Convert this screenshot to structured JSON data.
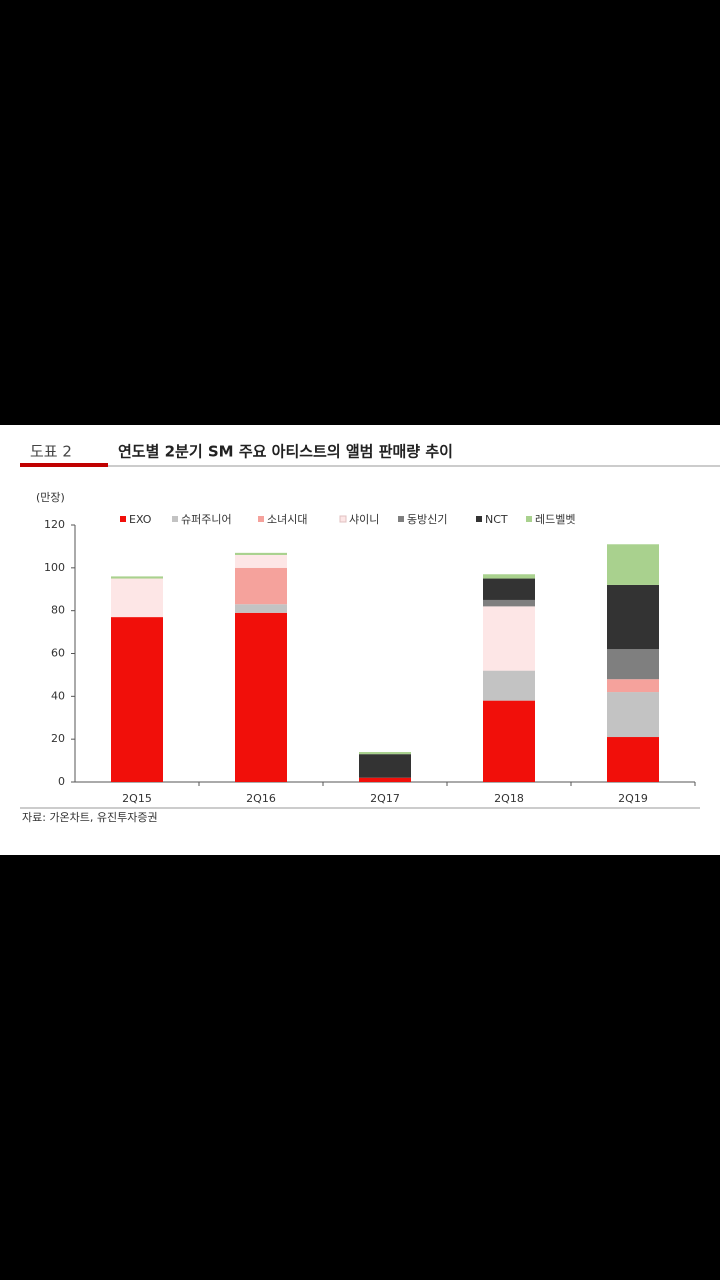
{
  "chart_data": {
    "type": "stacked_bar",
    "figure_label": "도표 2",
    "title": "연도별 2분기 SM 주요 아티스트의 앨범 판매량 추이",
    "y_unit": "(만장)",
    "source": "자료: 가온차트, 유진투자증권",
    "categories": [
      "2Q15",
      "2Q16",
      "2Q17",
      "2Q18",
      "2Q19"
    ],
    "series": [
      {
        "name": "EXO",
        "color": "#f10f0a",
        "values": [
          77,
          79,
          2,
          38,
          21
        ]
      },
      {
        "name": "슈퍼주니어",
        "color": "#c3c3c3",
        "values": [
          0,
          4,
          0,
          14,
          21
        ]
      },
      {
        "name": "소녀시대",
        "color": "#f5a29c",
        "values": [
          0,
          17,
          0,
          0,
          6
        ]
      },
      {
        "name": "샤이니",
        "color": "#fde6e6",
        "values": [
          18,
          6,
          0,
          30,
          0
        ]
      },
      {
        "name": "동방신기",
        "color": "#7f7f7f",
        "values": [
          0,
          0,
          0,
          3,
          14
        ]
      },
      {
        "name": "NCT",
        "color": "#333333",
        "values": [
          0,
          0,
          11,
          10,
          30
        ]
      },
      {
        "name": "레드벨벳",
        "color": "#a9d18e",
        "values": [
          1,
          1,
          1,
          2,
          19
        ]
      }
    ],
    "ylim": [
      0,
      120
    ],
    "yticks": [
      0,
      20,
      40,
      60,
      80,
      100,
      120
    ]
  }
}
